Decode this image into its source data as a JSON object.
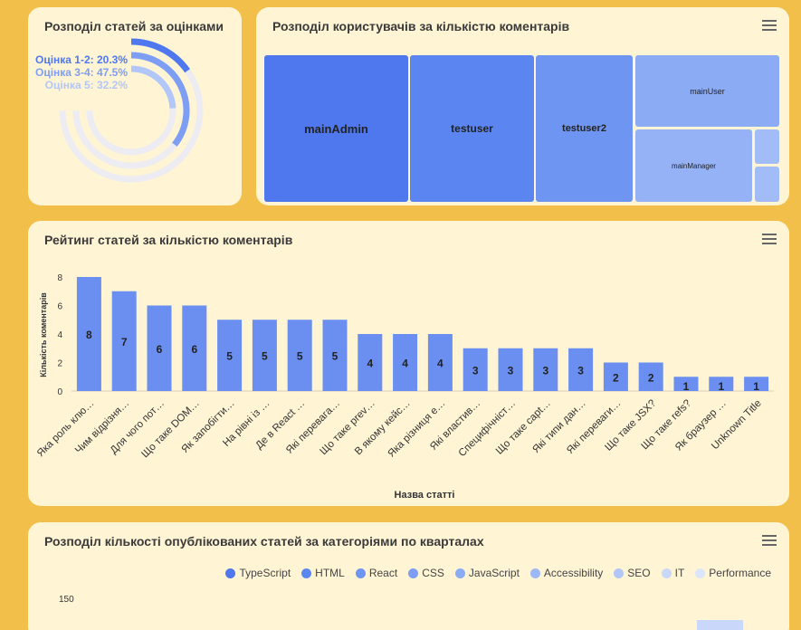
{
  "colors": {
    "blue1": "#4f78ee",
    "blue2": "#5b86f2",
    "blue3": "#6f95f2",
    "blue4": "#8cabf5",
    "bar": "#6a8ff0",
    "track": "#ececf2"
  },
  "donut": {
    "title": "Розподіл статей за оцінками",
    "chart_data": {
      "type": "radialBar",
      "categories": [
        "Оцінка 1-2",
        "Оцінка 3-4",
        "Оцінка 5"
      ],
      "values": [
        20.3,
        47.5,
        32.2
      ],
      "unit": "%",
      "labels": [
        "Оцінка 1-2: 20.3%",
        "Оцінка 3-4: 47.5%",
        "Оцінка 5: 32.2%"
      ],
      "colors": [
        "#4f78ee",
        "#7d9ef3",
        "#b2c7f7"
      ]
    }
  },
  "treemap": {
    "title": "Розподіл користувачів за кількістю коментарів",
    "menu_icon": "hamburger-icon",
    "chart_data": {
      "type": "treemap",
      "items": [
        {
          "name": "mainAdmin",
          "color": "#4f78ee"
        },
        {
          "name": "testuser",
          "color": "#5b86f2"
        },
        {
          "name": "testuser2",
          "color": "#6f95f2"
        },
        {
          "name": "mainUser",
          "color": "#8cabf5"
        },
        {
          "name": "mainManager",
          "color": "#95b2f6"
        },
        {
          "name": "",
          "color": "#a2bcf7"
        },
        {
          "name": "",
          "color": "#a2bcf7"
        }
      ]
    }
  },
  "bar": {
    "title": "Рейтинг статей за кількістю коментарів",
    "menu_icon": "hamburger-icon",
    "chart_data": {
      "type": "bar",
      "xlabel": "Назва статті",
      "ylabel": "Кількість коментарів",
      "ylim": [
        0,
        8
      ],
      "yticks": [
        0,
        2,
        4,
        6,
        8
      ],
      "categories": [
        "Яка роль клю…",
        "Чим відрізня…",
        "Для чого пот…",
        "Що таке DOM…",
        "Як запобігти…",
        "На рівні із …",
        "Де в React …",
        "Які перевага…",
        "Що таке prev…",
        "В якому кейс…",
        "Яка різниця е…",
        "Які властив…",
        "Специфічніст…",
        "Що таке capt…",
        "Які типи дан…",
        "Які переваги…",
        "Що таке JSX?",
        "Що таке refs?",
        "Як браузер …",
        "Unknown Title"
      ],
      "values": [
        8,
        7,
        6,
        6,
        5,
        5,
        5,
        5,
        4,
        4,
        4,
        3,
        3,
        3,
        3,
        2,
        2,
        1,
        1,
        1
      ]
    }
  },
  "quarter": {
    "title": "Розподіл кількості опублікованих статей за категоріями по кварталах",
    "menu_icon": "hamburger-icon",
    "chart_data": {
      "type": "bar",
      "legend": [
        {
          "name": "TypeScript",
          "color": "#4f78ee"
        },
        {
          "name": "HTML",
          "color": "#5b86f2"
        },
        {
          "name": "React",
          "color": "#6f95f2"
        },
        {
          "name": "CSS",
          "color": "#7d9ef3"
        },
        {
          "name": "JavaScript",
          "color": "#8cabf5"
        },
        {
          "name": "Accessibility",
          "color": "#9db8f6"
        },
        {
          "name": "SEO",
          "color": "#b2c7f7"
        },
        {
          "name": "IT",
          "color": "#c9d8fa"
        },
        {
          "name": "Performance",
          "color": "#dbe5fb"
        }
      ],
      "ytick_top": "150",
      "legend_position": "top-right"
    }
  }
}
